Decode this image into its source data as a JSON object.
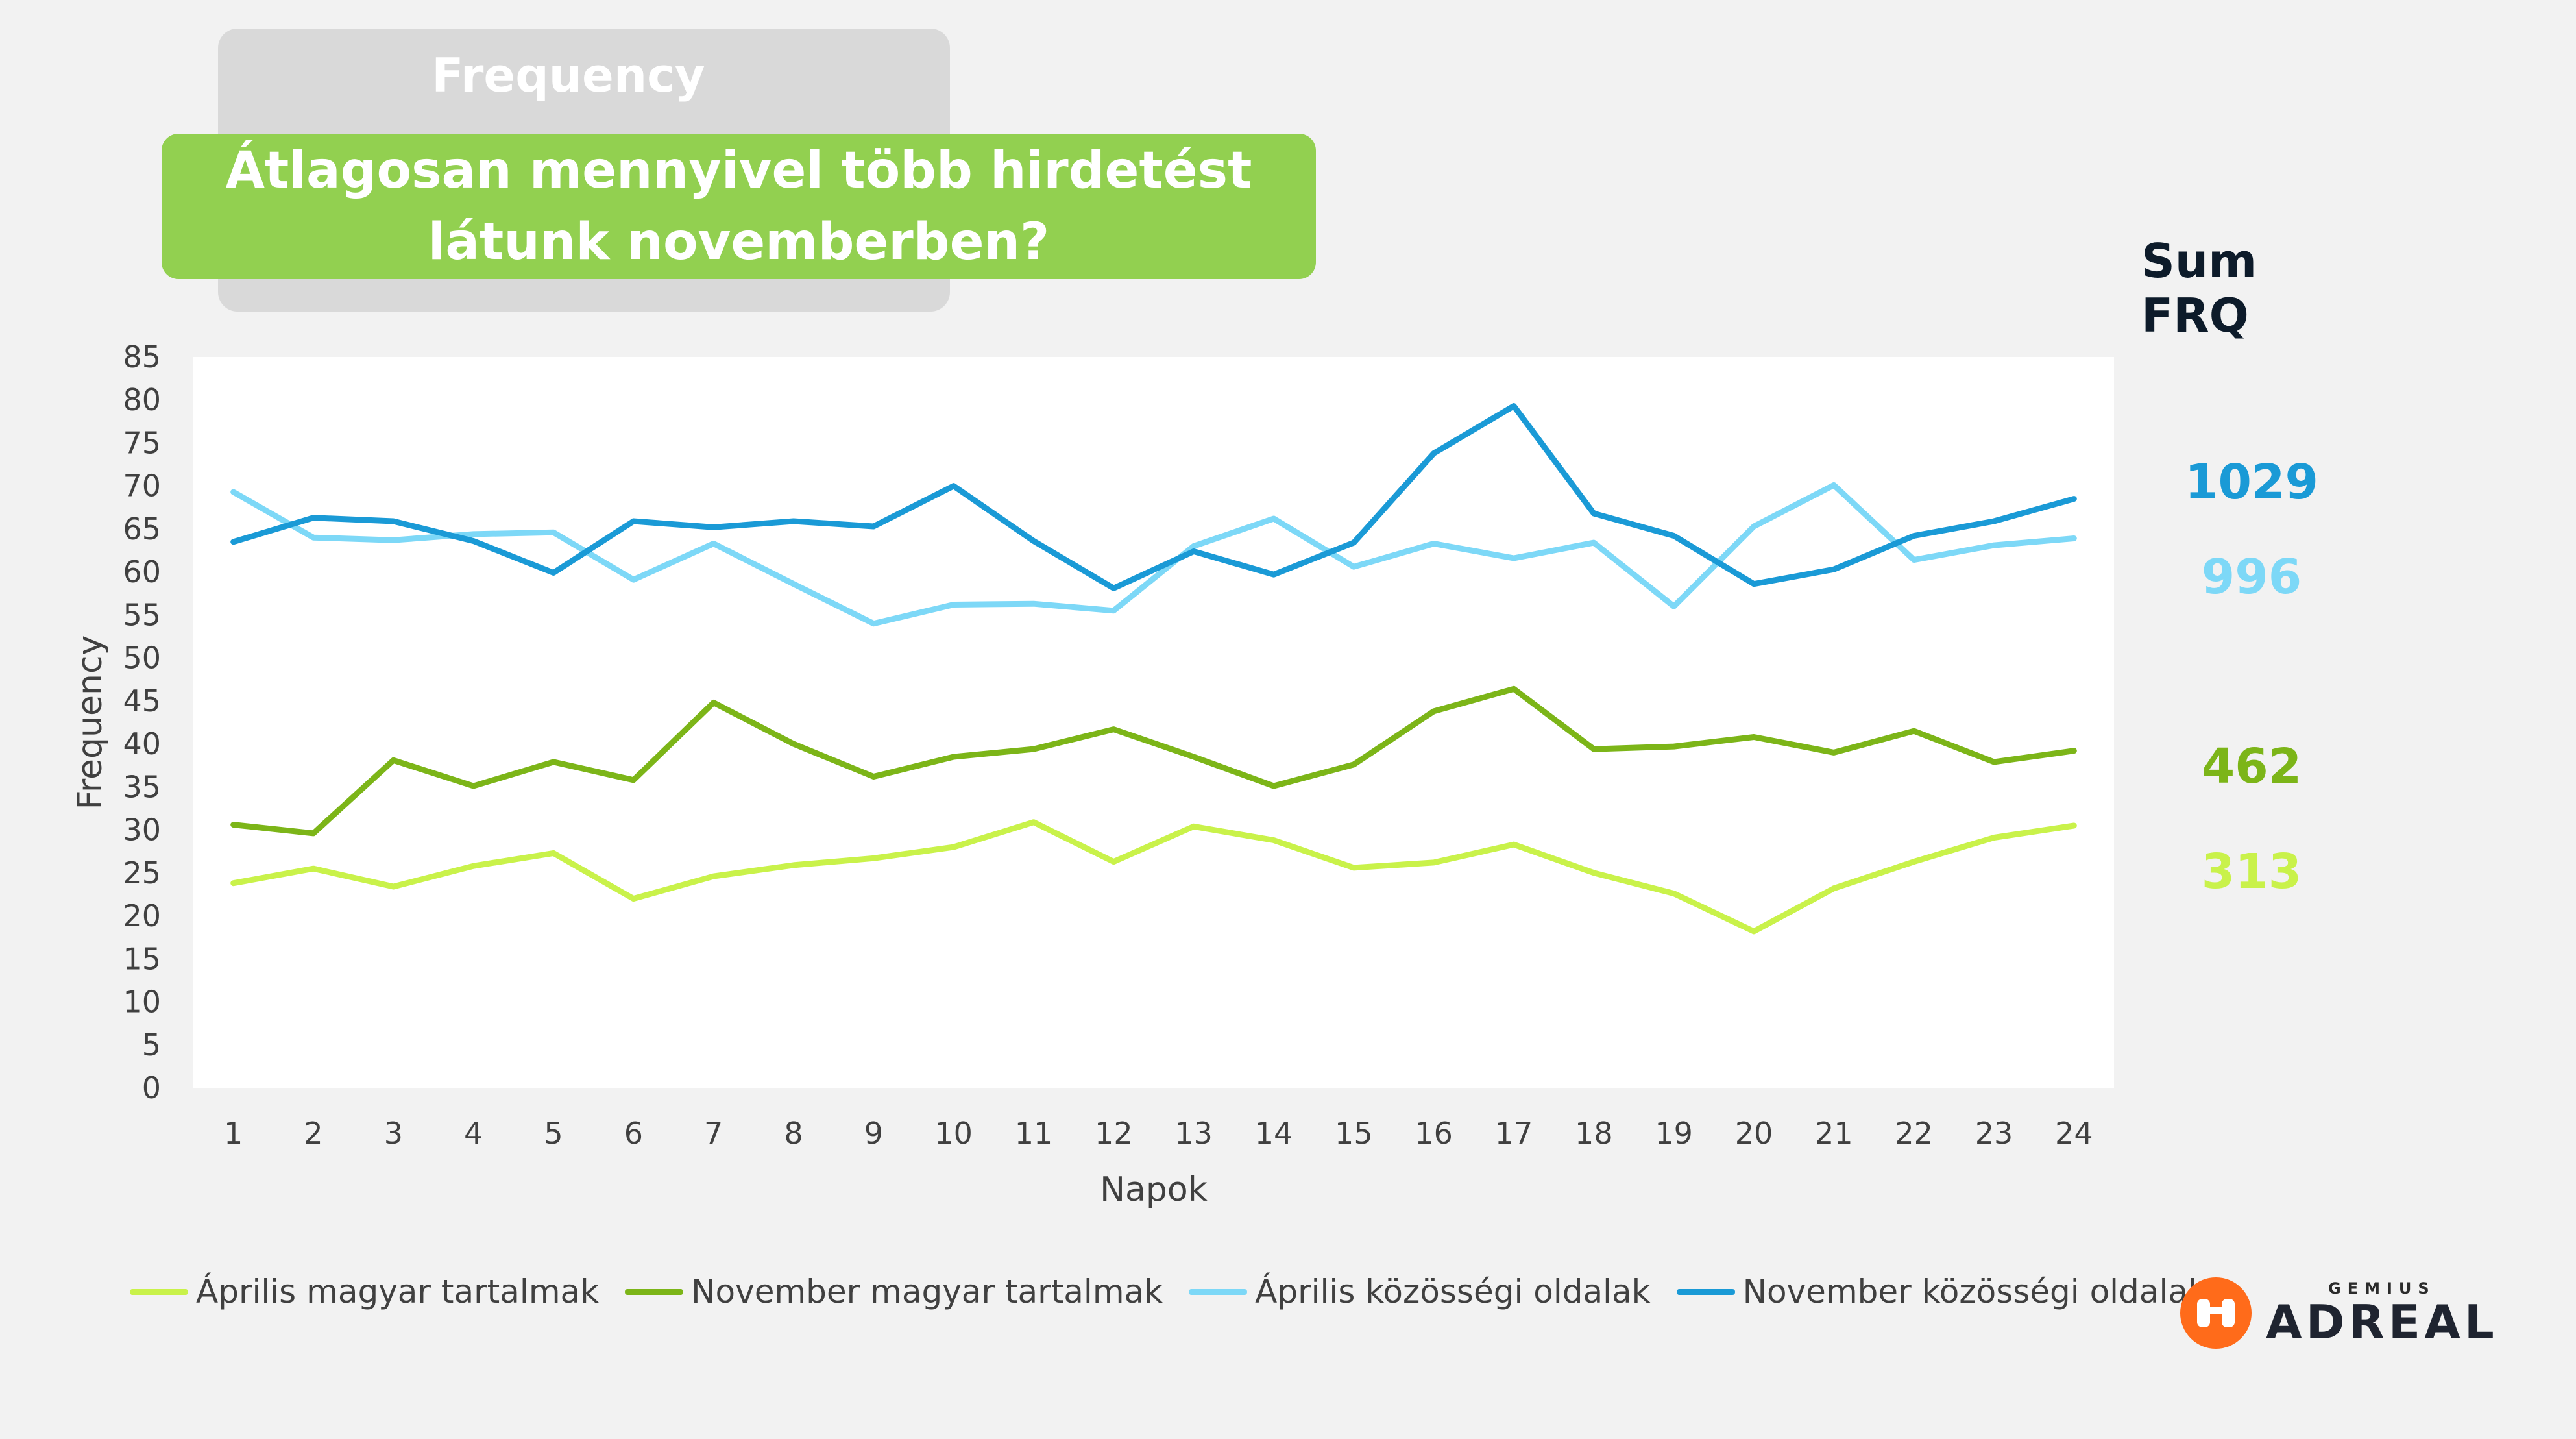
{
  "header": {
    "category": "Frequency",
    "question": "Átlagosan mennyivel több hirdetést\nlátunk novemberben?"
  },
  "sum_panel": {
    "title": "Sum FRQ",
    "values": [
      {
        "value": "1029",
        "color": "#1a9ad6"
      },
      {
        "value": "996",
        "color": "#7dd8f7"
      },
      {
        "value": "462",
        "color": "#7cb518"
      },
      {
        "value": "313",
        "color": "#c9f24a"
      }
    ]
  },
  "chart_data": {
    "type": "line",
    "title": "",
    "xlabel": "Napok",
    "ylabel": "Frequency",
    "ylim": [
      0,
      85
    ],
    "yticks": [
      0,
      5,
      10,
      15,
      20,
      25,
      30,
      35,
      40,
      45,
      50,
      55,
      60,
      65,
      70,
      75,
      80,
      85
    ],
    "grid": false,
    "legend_position": "bottom",
    "x": [
      "1",
      "2",
      "3",
      "4",
      "5",
      "6",
      "7",
      "8",
      "9",
      "10",
      "11",
      "12",
      "13",
      "14",
      "15",
      "16",
      "17",
      "18",
      "19",
      "20",
      "21",
      "22",
      "23",
      "24"
    ],
    "series": [
      {
        "name": "Április magyar tartalmak",
        "color": "#c9f24a",
        "values": [
          23.8,
          25.5,
          23.4,
          25.8,
          27.3,
          22.0,
          24.6,
          25.9,
          26.7,
          28.0,
          30.9,
          26.3,
          30.4,
          28.8,
          25.6,
          26.2,
          28.3,
          25.0,
          22.6,
          18.2,
          23.2,
          26.3,
          29.1,
          30.5
        ]
      },
      {
        "name": "November magyar tartalmak",
        "color": "#7cb518",
        "values": [
          30.6,
          29.6,
          38.1,
          35.1,
          37.9,
          35.8,
          44.8,
          40.0,
          36.2,
          38.5,
          39.4,
          41.7,
          38.5,
          35.1,
          37.6,
          43.8,
          46.4,
          39.4,
          39.7,
          40.8,
          39.0,
          41.5,
          37.9,
          39.2
        ]
      },
      {
        "name": "Április közösségi oldalak",
        "color": "#7dd8f7",
        "values": [
          69.3,
          64.0,
          63.7,
          64.4,
          64.6,
          59.1,
          63.3,
          58.6,
          54.0,
          56.2,
          56.3,
          55.5,
          63.0,
          66.2,
          60.6,
          63.3,
          61.6,
          63.4,
          56.0,
          65.3,
          70.1,
          61.4,
          63.1,
          63.9
        ]
      },
      {
        "name": "November közösségi oldalak",
        "color": "#1a9ad6",
        "values": [
          63.5,
          66.3,
          65.9,
          63.6,
          59.9,
          65.9,
          65.2,
          65.9,
          65.3,
          70.0,
          63.6,
          58.1,
          62.4,
          59.7,
          63.4,
          73.8,
          79.3,
          66.8,
          64.2,
          58.6,
          60.3,
          64.2,
          65.9,
          68.5
        ]
      }
    ]
  },
  "brand": {
    "small": "GEMIUS",
    "big": "ADREAL",
    "icon": "binoculars-icon",
    "color": "#ff6b1a"
  }
}
